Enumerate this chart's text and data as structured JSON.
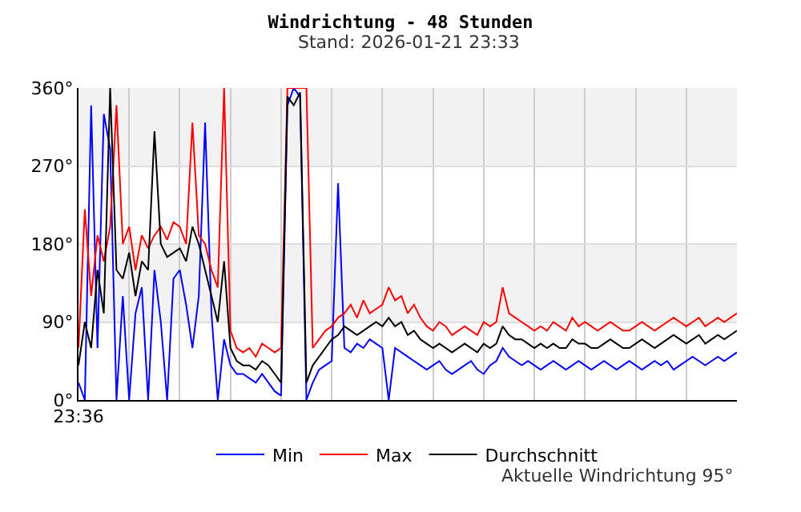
{
  "chart_data": {
    "type": "line",
    "title": "Windrichtung - 48 Stunden",
    "subtitle": "Stand: 2026-01-21 23:33",
    "categories": [
      "23:36",
      null,
      null,
      null,
      null,
      null,
      null,
      null,
      null,
      null,
      null,
      null,
      null,
      null,
      null,
      null,
      null,
      null,
      null,
      null,
      null,
      null,
      null,
      null,
      null,
      null,
      null,
      null,
      null,
      null,
      null,
      null,
      null,
      null,
      null,
      null,
      null,
      null,
      null,
      null,
      null,
      null,
      null,
      null,
      null,
      null,
      null,
      null,
      null,
      null,
      null,
      null,
      null,
      null,
      null,
      null,
      null,
      null,
      null,
      null,
      null,
      null,
      null,
      null,
      null,
      null,
      null,
      null,
      null,
      null,
      null,
      null,
      null,
      null,
      null,
      null,
      null,
      null,
      null,
      null,
      null,
      null,
      null,
      null,
      null,
      null,
      null,
      null,
      null,
      null,
      null,
      null,
      null,
      null,
      null,
      null,
      null,
      null,
      null,
      null,
      null,
      null,
      null,
      null,
      null
    ],
    "series": [
      {
        "name": "Min",
        "color": "#0000ff",
        "values": [
          20,
          0,
          340,
          60,
          330,
          290,
          0,
          120,
          0,
          100,
          130,
          0,
          150,
          90,
          0,
          140,
          150,
          110,
          60,
          120,
          320,
          100,
          0,
          70,
          40,
          30,
          30,
          25,
          20,
          30,
          20,
          10,
          5,
          340,
          360,
          350,
          0,
          20,
          35,
          40,
          45,
          250,
          60,
          55,
          65,
          60,
          70,
          65,
          60,
          0,
          60,
          55,
          50,
          45,
          40,
          35,
          40,
          45,
          35,
          30,
          35,
          40,
          45,
          35,
          30,
          40,
          45,
          60,
          50,
          45,
          40,
          45,
          40,
          35,
          40,
          45,
          40,
          35,
          40,
          45,
          40,
          35,
          40,
          45,
          40,
          35,
          40,
          45,
          40,
          35,
          40,
          45,
          40,
          45,
          35,
          40,
          45,
          50,
          45,
          40,
          45,
          50,
          45,
          50,
          55
        ]
      },
      {
        "name": "Max",
        "color": "#ff0000",
        "values": [
          60,
          220,
          120,
          190,
          160,
          200,
          340,
          180,
          200,
          150,
          190,
          175,
          190,
          200,
          185,
          205,
          200,
          180,
          320,
          190,
          180,
          150,
          130,
          360,
          80,
          60,
          55,
          60,
          50,
          65,
          60,
          55,
          60,
          360,
          360,
          360,
          360,
          60,
          70,
          80,
          85,
          95,
          100,
          110,
          95,
          115,
          100,
          105,
          110,
          130,
          115,
          120,
          100,
          110,
          95,
          85,
          80,
          90,
          85,
          75,
          80,
          85,
          80,
          75,
          90,
          85,
          90,
          130,
          100,
          95,
          90,
          85,
          80,
          85,
          80,
          90,
          85,
          80,
          95,
          85,
          90,
          85,
          80,
          85,
          90,
          85,
          80,
          80,
          85,
          90,
          85,
          80,
          85,
          90,
          95,
          90,
          85,
          90,
          95,
          85,
          90,
          95,
          90,
          95,
          100
        ]
      },
      {
        "name": "Durchschnitt",
        "color": "#000000",
        "values": [
          40,
          90,
          60,
          150,
          100,
          360,
          150,
          140,
          170,
          120,
          160,
          150,
          310,
          180,
          165,
          170,
          175,
          160,
          200,
          180,
          150,
          120,
          90,
          160,
          60,
          45,
          40,
          40,
          35,
          45,
          40,
          30,
          20,
          350,
          340,
          355,
          20,
          40,
          50,
          60,
          70,
          75,
          85,
          80,
          75,
          80,
          85,
          90,
          85,
          95,
          85,
          90,
          75,
          80,
          70,
          65,
          60,
          65,
          60,
          55,
          60,
          65,
          60,
          55,
          65,
          60,
          65,
          85,
          75,
          70,
          70,
          65,
          60,
          65,
          60,
          65,
          60,
          60,
          70,
          65,
          65,
          60,
          60,
          65,
          70,
          65,
          60,
          60,
          65,
          70,
          65,
          60,
          65,
          70,
          75,
          70,
          65,
          70,
          75,
          65,
          70,
          75,
          70,
          75,
          80
        ]
      }
    ],
    "ylim": [
      0,
      360
    ],
    "yticks": [
      {
        "value": 0,
        "label": "0°"
      },
      {
        "value": 90,
        "label": "90°"
      },
      {
        "value": 180,
        "label": "180°"
      },
      {
        "value": 270,
        "label": "270°"
      },
      {
        "value": 360,
        "label": "360°"
      }
    ],
    "bands": [
      {
        "axis": "y",
        "from": 90,
        "to": 180,
        "color": "#f2f2f2"
      },
      {
        "axis": "y",
        "from": 270,
        "to": 360,
        "color": "#f2f2f2"
      }
    ],
    "grid": true,
    "legend": "bottom",
    "marker": "none",
    "line_style": "solid",
    "annotations": [
      "Aktuelle Windrichtung 95°"
    ]
  }
}
